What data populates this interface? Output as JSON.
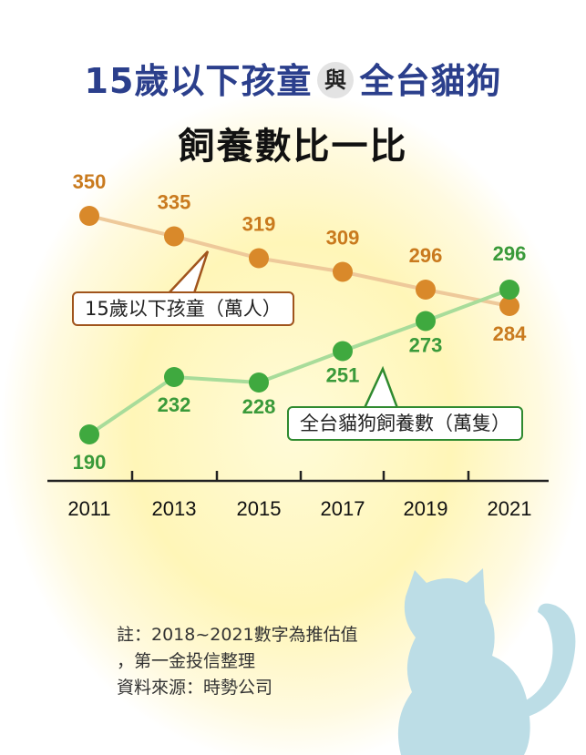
{
  "title": {
    "line1_left": "15歲以下孩童",
    "line1_mid": "與",
    "line1_right": "全台貓狗",
    "line2": "飼養數比一比"
  },
  "chart_data": {
    "type": "line",
    "x": [
      "2011",
      "2013",
      "2015",
      "2017",
      "2019",
      "2021"
    ],
    "series": [
      {
        "name": "15歲以下孩童（萬人）",
        "values": [
          350,
          335,
          319,
          309,
          296,
          284
        ],
        "color": "#d9892a",
        "line_color": "#eec99a",
        "label_color": "#c97a1e"
      },
      {
        "name": "全台貓狗飼養數（萬隻）",
        "values": [
          190,
          232,
          228,
          251,
          273,
          296
        ],
        "color": "#3fa93f",
        "line_color": "#a8dc9a",
        "label_color": "#3a9a3a"
      }
    ],
    "grid": false
  },
  "notes": [
    "註：2018~2021數字為推估值",
    "，第一金投信整理",
    "資料來源：時勢公司"
  ],
  "colors": {
    "title_blue": "#2b3f8c",
    "glow": "#fff6b8",
    "cat": "#bcdde6"
  }
}
